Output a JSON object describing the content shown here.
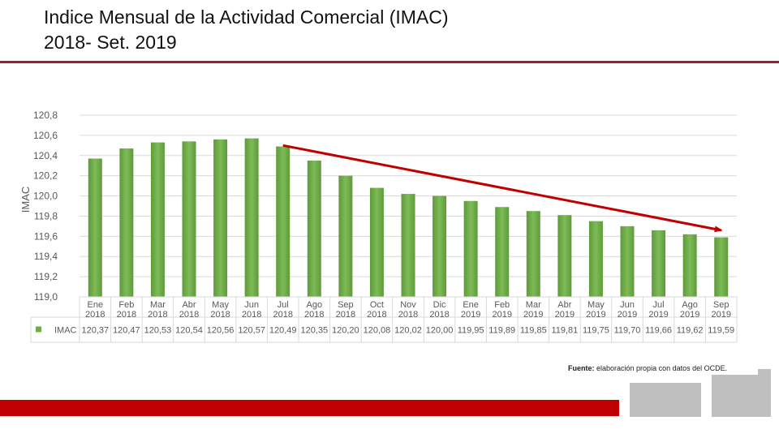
{
  "page": {
    "title_line1": "Indice Mensual de la Actividad Comercial (IMAC)",
    "title_line2": "2018- Set. 2019",
    "source_label": "Fuente:",
    "source_text": "elaboración propia con datos del OCDE."
  },
  "chart_data": {
    "type": "bar",
    "ylabel": "IMAC",
    "ylim": [
      119.0,
      120.8
    ],
    "yticks": [
      "119,0",
      "119,2",
      "119,4",
      "119,6",
      "119,8",
      "120,0",
      "120,2",
      "120,4",
      "120,6",
      "120,8"
    ],
    "grid": true,
    "categories": [
      [
        "Ene",
        "2018"
      ],
      [
        "Feb",
        "2018"
      ],
      [
        "Mar",
        "2018"
      ],
      [
        "Abr",
        "2018"
      ],
      [
        "May",
        "2018"
      ],
      [
        "Jun",
        "2018"
      ],
      [
        "Jul",
        "2018"
      ],
      [
        "Ago",
        "2018"
      ],
      [
        "Sep",
        "2018"
      ],
      [
        "Oct",
        "2018"
      ],
      [
        "Nov",
        "2018"
      ],
      [
        "Dic",
        "2018"
      ],
      [
        "Ene",
        "2019"
      ],
      [
        "Feb",
        "2019"
      ],
      [
        "Mar",
        "2019"
      ],
      [
        "Abr",
        "2019"
      ],
      [
        "May",
        "2019"
      ],
      [
        "Jun",
        "2019"
      ],
      [
        "Jul",
        "2019"
      ],
      [
        "Ago",
        "2019"
      ],
      [
        "Sep",
        "2019"
      ]
    ],
    "series": [
      {
        "name": "IMAC",
        "color": "#70ad47",
        "values": [
          120.37,
          120.47,
          120.53,
          120.54,
          120.56,
          120.57,
          120.49,
          120.35,
          120.2,
          120.08,
          120.02,
          120.0,
          119.95,
          119.89,
          119.85,
          119.81,
          119.75,
          119.7,
          119.66,
          119.62,
          119.59
        ],
        "value_labels": [
          "120,37",
          "120,47",
          "120,53",
          "120,54",
          "120,56",
          "120,57",
          "120,49",
          "120,35",
          "120,20",
          "120,08",
          "120,02",
          "120,00",
          "119,95",
          "119,89",
          "119,85",
          "119,81",
          "119,75",
          "119,70",
          "119,66",
          "119,62",
          "119,59"
        ]
      }
    ],
    "data_table": true,
    "annotations": [
      {
        "type": "arrow",
        "color": "#c00000",
        "from": {
          "category_index": 6,
          "value": 120.5
        },
        "to": {
          "category_index": 20,
          "value": 119.66
        }
      }
    ]
  }
}
